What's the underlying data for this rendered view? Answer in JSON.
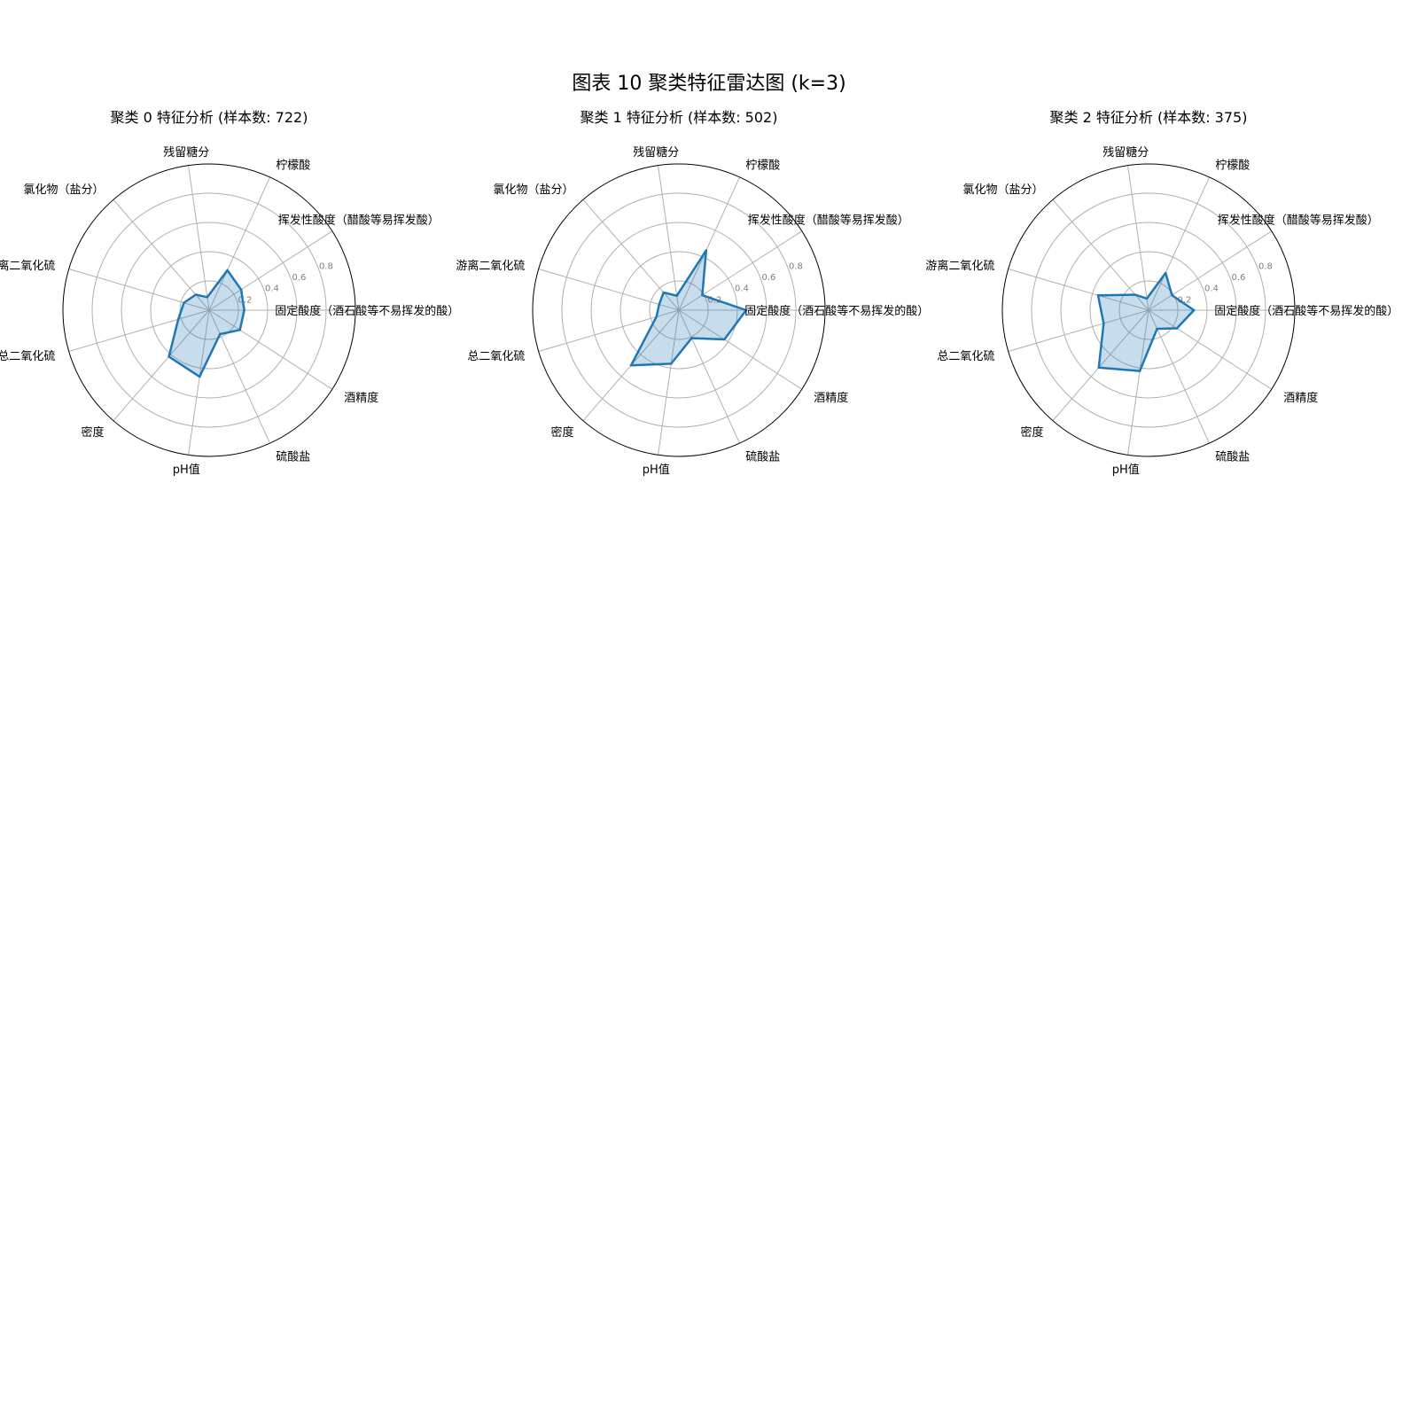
{
  "figure": {
    "title": "图表 10 聚类特征雷达图 (k=3)"
  },
  "chart_data": [
    {
      "type": "radar",
      "title": "聚类 0 特征分析 (样本数: 722)",
      "axes": [
        "固定酸度（酒石酸等不易挥发的酸）",
        "挥发性酸度（醋酸等易挥发酸）",
        "柠檬酸",
        "残留糖分",
        "氯化物（盐分）",
        "游离二氧化硫",
        "总二氧化硫",
        "密度",
        "pH值",
        "硫酸盐",
        "酒精度"
      ],
      "r_ticks": [
        "0.2",
        "0.4",
        "0.6",
        "0.8"
      ],
      "r_lim": [
        0,
        1
      ],
      "values": [
        0.24,
        0.26,
        0.3,
        0.09,
        0.14,
        0.18,
        0.22,
        0.42,
        0.46,
        0.18,
        0.25
      ],
      "color": "#1f77b4"
    },
    {
      "type": "radar",
      "title": "聚类 1 特征分析 (样本数: 502)",
      "axes": [
        "固定酸度（酒石酸等不易挥发的酸）",
        "挥发性酸度（醋酸等易挥发酸）",
        "柠檬酸",
        "残留糖分",
        "氯化物（盐分）",
        "游离二氧化硫",
        "总二氧化硫",
        "密度",
        "pH值",
        "硫酸盐",
        "酒精度"
      ],
      "r_ticks": [
        "0.2",
        "0.4",
        "0.6",
        "0.8"
      ],
      "r_lim": [
        0,
        1
      ],
      "values": [
        0.46,
        0.19,
        0.45,
        0.1,
        0.16,
        0.14,
        0.16,
        0.5,
        0.37,
        0.21,
        0.37
      ],
      "color": "#1f77b4"
    },
    {
      "type": "radar",
      "title": "聚类 2 特征分析 (样本数: 375)",
      "axes": [
        "固定酸度（酒石酸等不易挥发的酸）",
        "挥发性酸度（醋酸等易挥发酸）",
        "柠檬酸",
        "残留糖分",
        "氯化物（盐分）",
        "游离二氧化硫",
        "总二氧化硫",
        "密度",
        "pH值",
        "硫酸盐",
        "酒精度"
      ],
      "r_ticks": [
        "0.2",
        "0.4",
        "0.6",
        "0.8"
      ],
      "r_lim": [
        0,
        1
      ],
      "values": [
        0.31,
        0.19,
        0.28,
        0.08,
        0.14,
        0.36,
        0.32,
        0.52,
        0.42,
        0.14,
        0.23
      ],
      "color": "#1f77b4"
    }
  ]
}
